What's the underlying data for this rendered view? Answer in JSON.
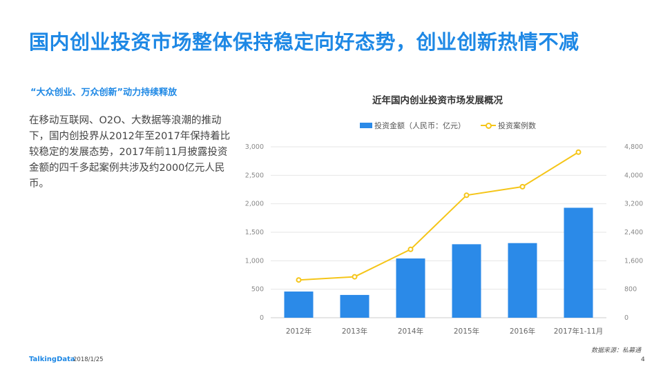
{
  "slide": {
    "title": "国内创业投资市场整体保持稳定向好态势，创业创新热情不减",
    "subtitle": "“大众创业、万众创新”动力持续释放",
    "body": "在移动互联网、O2O、大数据等浪潮的推动下，国内创投界从2012年至2017年保持着比较稳定的发展态势，2017年前11月披露投资金额的四千多起案例共涉及约2000亿元人民币。",
    "source": "数据来源：私募通",
    "footer_logo": "TalkingData",
    "footer_date": "2018/1/25",
    "page_number": "4"
  },
  "chart_data": {
    "type": "bar",
    "title": "近年国内创业投资市场发展概况",
    "legend_position": "top",
    "grid": true,
    "categories": [
      "2012年",
      "2013年",
      "2014年",
      "2015年",
      "2016年",
      "2017年1-11月"
    ],
    "series": [
      {
        "name": "投资金额（人民币：亿元）",
        "type": "bar",
        "axis": "left",
        "color": "#2b8ae8",
        "values": [
          460,
          400,
          1040,
          1290,
          1310,
          1930
        ]
      },
      {
        "name": "投资案例数",
        "type": "line",
        "axis": "right",
        "color": "#f5c518",
        "values": [
          1060,
          1150,
          1920,
          3440,
          3680,
          4650
        ]
      }
    ],
    "y_left": {
      "min": 0,
      "max": 3000,
      "ticks": [
        "0",
        "500",
        "1,000",
        "1,500",
        "2,000",
        "2,500",
        "3,000"
      ],
      "tick_values": [
        0,
        500,
        1000,
        1500,
        2000,
        2500,
        3000
      ]
    },
    "y_right": {
      "min": 0,
      "max": 4800,
      "ticks": [
        "0",
        "800",
        "1,600",
        "2,400",
        "3,200",
        "4,000",
        "4,800"
      ],
      "tick_values": [
        0,
        800,
        1600,
        2400,
        3200,
        4000,
        4800
      ]
    }
  }
}
